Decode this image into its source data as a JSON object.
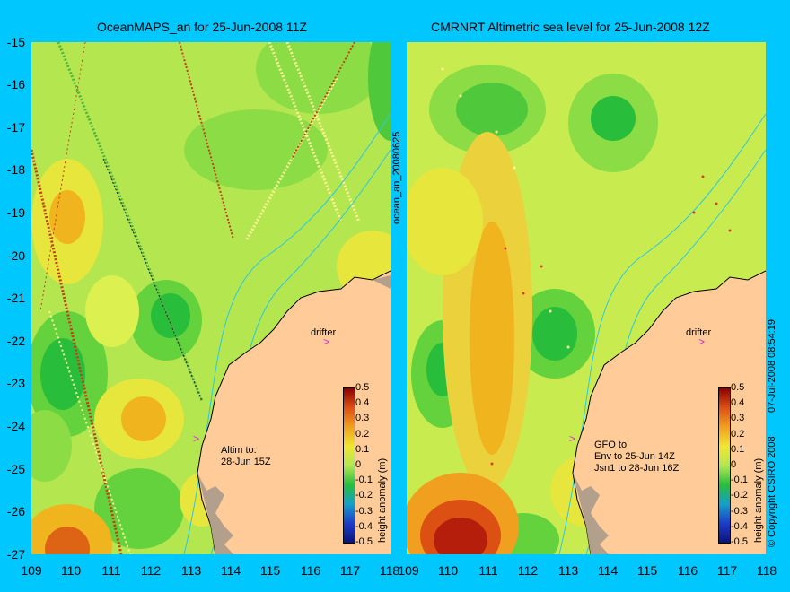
{
  "left_title": "OceanMAPS_an for 25-Jun-2008 11Z",
  "right_title": "CMRNRT Altimetric sea level  for 25-Jun-2008 12Z",
  "y_ticks": [
    "-15",
    "-16",
    "-17",
    "-18",
    "-19",
    "-20",
    "-21",
    "-22",
    "-23",
    "-24",
    "-25",
    "-26",
    "-27"
  ],
  "x_ticks_left": [
    "109",
    "110",
    "111",
    "112",
    "113",
    "114",
    "115",
    "116",
    "117",
    "118"
  ],
  "x_ticks_right": [
    "109",
    "110",
    "111",
    "112",
    "113",
    "114",
    "115",
    "116",
    "117",
    "118"
  ],
  "side_label_left": "ocean_an_20080625",
  "side_label_right": "07-Jul-2008 08:54:19",
  "copyright": "© Copyright CSIRO 2008",
  "left_annotation": {
    "drifter": "drifter",
    "altim_line1": "Altim to:",
    "altim_line2": "28-Jun 15Z"
  },
  "right_annotation": {
    "drifter": "drifter",
    "line1": "GFO to",
    "line2": "Env to 25-Jun 14Z",
    "line3": "Jsn1 to 28-Jun 16Z"
  },
  "colorbar": {
    "ticks": [
      "0.5",
      "0.4",
      "0.3",
      "0.2",
      "0.1",
      "0",
      "-0.1",
      "-0.2",
      "-0.3",
      "-0.4",
      "-0.5"
    ],
    "label": "height anomaly (m)"
  },
  "colors": {
    "background": "#00c8ff",
    "land": "#ffcc99",
    "coast_flat": "#b3a08c"
  }
}
